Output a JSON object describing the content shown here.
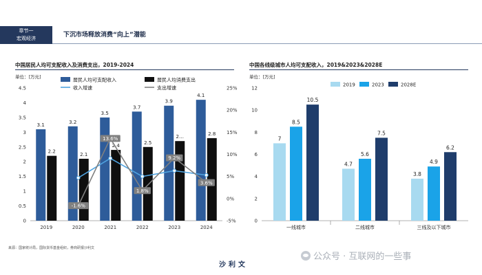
{
  "header": {
    "chapter_line1": "章节一",
    "chapter_line2": "宏观经济",
    "title": "下沉市场释放消费“向上”潜能"
  },
  "footer": {
    "source": "来源：国家统计局，国际货币基金组织，券商研报沙利文",
    "brand": "沙利文",
    "watermark": "公众号 · 互联网的一些事"
  },
  "colors": {
    "income": "#2e5c9a",
    "expense": "#0f0f0f",
    "income_growth": "#4fa3e0",
    "expense_growth": "#808080",
    "y2019": "#a8daf0",
    "y2023": "#1aa3e8",
    "y2028E": "#1f3d6b"
  },
  "chart_data": [
    {
      "type": "bar",
      "title": "中国居民人均可支配收入及消费支出，2019-2024",
      "unit": "单位：[万元]",
      "categories": [
        "2019",
        "2020",
        "2021",
        "2022",
        "2023",
        "2024"
      ],
      "left_axis": {
        "ylim": [
          0,
          4.5
        ],
        "ticks": [
          "0",
          "0.5",
          "1",
          "1.5",
          "2",
          "2.5",
          "3",
          "3.5",
          "4",
          "4.5"
        ]
      },
      "right_axis": {
        "ylim": [
          -5,
          25
        ],
        "ticks": [
          "-5%",
          "0%",
          "5%",
          "10%",
          "15%",
          "20%",
          "25%"
        ]
      },
      "series": [
        {
          "name": "居民人均可支配收入",
          "kind": "bar",
          "values": [
            3.1,
            3.2,
            3.5,
            3.7,
            3.9,
            4.1
          ],
          "labels": [
            "3.1",
            "3.2",
            "3.5",
            "3.7",
            "3.9",
            "4.1"
          ]
        },
        {
          "name": "居民人均消费支出",
          "kind": "bar",
          "values": [
            2.2,
            2.1,
            2.4,
            2.5,
            2.7,
            2.8
          ],
          "labels": [
            "2.2",
            "2.1",
            "2.4",
            "2.5",
            "2…",
            "2.8"
          ]
        },
        {
          "name": "收入增速",
          "kind": "line",
          "axis": "right",
          "values": [
            null,
            4.7,
            9.1,
            5.0,
            6.3,
            5.3
          ],
          "labels": [
            "",
            "",
            "",
            "",
            "",
            ""
          ]
        },
        {
          "name": "支出增速",
          "kind": "line",
          "axis": "right",
          "values": [
            null,
            -1.6,
            13.6,
            1.8,
            9.2,
            3.6
          ],
          "labels": [
            "",
            "-1.6%",
            "13.6%",
            "1.8%",
            "9.2%",
            "3.6%"
          ]
        }
      ],
      "legend_position": "top"
    },
    {
      "type": "bar",
      "title": "中国各线级城市人均可支配收入，2019&2023&2028E",
      "unit": "单位：[万元]",
      "categories": [
        "一线城市",
        "二线城市",
        "三线及以下城市"
      ],
      "ylim": [
        0,
        12
      ],
      "ticks": [
        "0",
        "2",
        "4",
        "6",
        "8",
        "10",
        "12"
      ],
      "series": [
        {
          "name": "2019",
          "values": [
            7,
            4.7,
            3.8
          ],
          "labels": [
            "7",
            "4.7",
            "3.8"
          ]
        },
        {
          "name": "2023",
          "values": [
            8.5,
            5.6,
            4.9
          ],
          "labels": [
            "8.5",
            "5.6",
            "4.9"
          ]
        },
        {
          "name": "2028E",
          "values": [
            10.5,
            7.5,
            6.2
          ],
          "labels": [
            "10.5",
            "7.5",
            "6.2"
          ]
        }
      ],
      "legend_position": "top-left"
    }
  ]
}
